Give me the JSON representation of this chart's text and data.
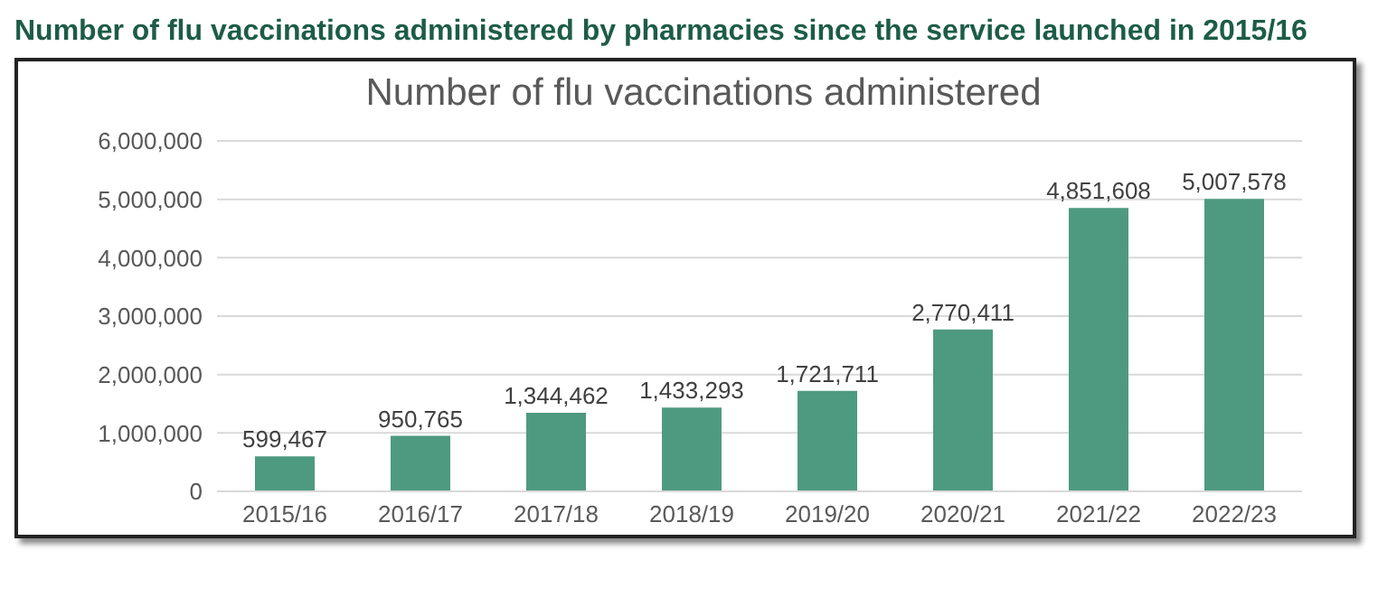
{
  "chart_data": {
    "type": "bar",
    "title": "Number of flu vaccinations administered by pharmacies since the service launched in 2015/16",
    "subtitle": "Number of flu vaccinations administered",
    "categories": [
      "2015/16",
      "2016/17",
      "2017/18",
      "2018/19",
      "2019/20",
      "2020/21",
      "2021/22",
      "2022/23"
    ],
    "values": [
      599467,
      950765,
      1344462,
      1433293,
      1721711,
      2770411,
      4851608,
      5007578
    ],
    "value_labels": [
      "599,467",
      "950,765",
      "1,344,462",
      "1,433,293",
      "1,721,711",
      "2,770,411",
      "4,851,608",
      "5,007,578"
    ],
    "color": "#4e9a80",
    "ylim": [
      0,
      6000000
    ],
    "yticks": [
      {
        "value": 0,
        "label": "0"
      },
      {
        "value": 1000000,
        "label": "1,000,000"
      },
      {
        "value": 2000000,
        "label": "2,000,000"
      },
      {
        "value": 3000000,
        "label": "3,000,000"
      },
      {
        "value": 4000000,
        "label": "4,000,000"
      },
      {
        "value": 5000000,
        "label": "5,000,000"
      },
      {
        "value": 6000000,
        "label": "6,000,000"
      }
    ],
    "grid": "y"
  }
}
